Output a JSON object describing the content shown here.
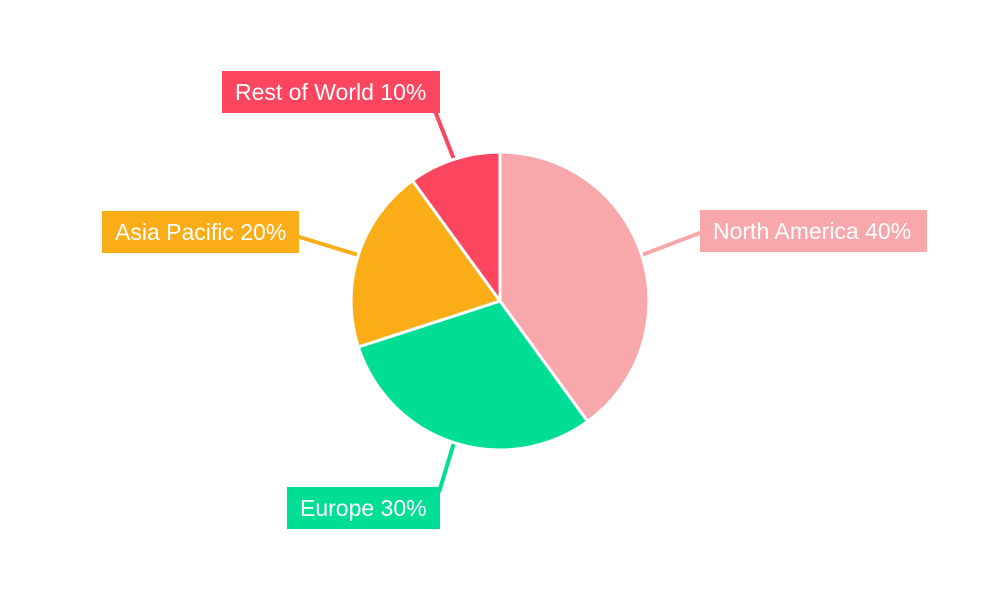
{
  "chart_data": {
    "type": "pie",
    "title": "",
    "categories": [
      "North America",
      "Europe",
      "Asia Pacific",
      "Rest of World"
    ],
    "values": [
      40,
      30,
      20,
      10
    ],
    "unit": "%",
    "direction": "clockwise",
    "start_angle_deg_from_top": 0,
    "background_color": "#FFFFFF",
    "separator_color": "#FFFFFF",
    "label_text_color": "#FFFFFF",
    "slices": [
      {
        "name": "North America",
        "value": 40,
        "label_text": "North America 40%",
        "color": "#F8A7AA"
      },
      {
        "name": "Europe",
        "value": 30,
        "label_text": "Europe 30%",
        "color": "#00DE95"
      },
      {
        "name": "Asia Pacific",
        "value": 20,
        "label_text": "Asia Pacific 20%",
        "color": "#FBAD18"
      },
      {
        "name": "Rest of World",
        "value": 10,
        "label_text": "Rest of World 10%",
        "color": "#FC455E"
      }
    ]
  }
}
